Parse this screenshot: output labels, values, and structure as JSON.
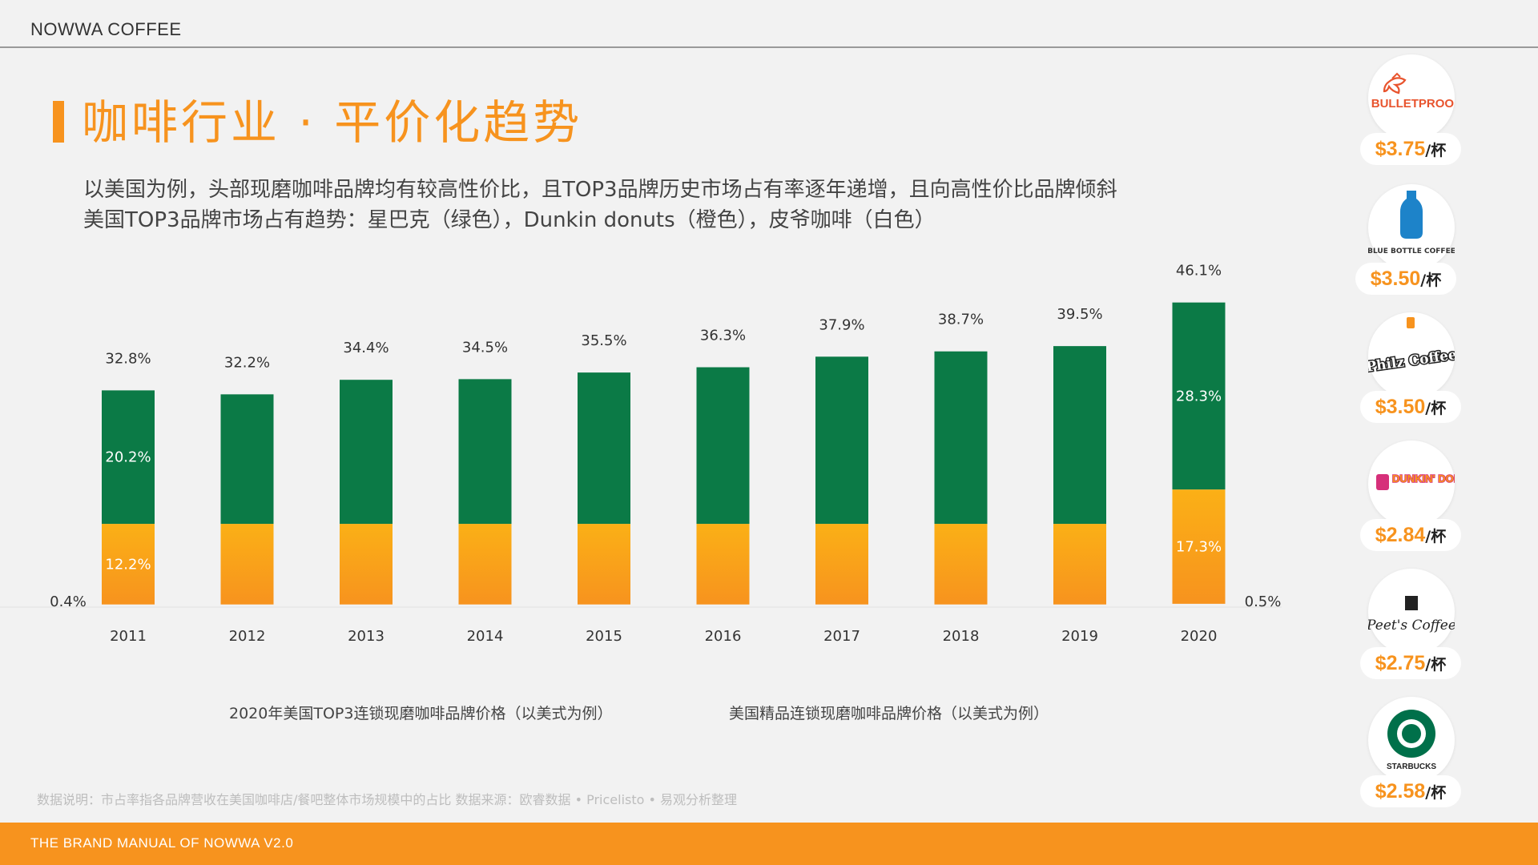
{
  "header": {
    "brand": "NOWWA COFFEE"
  },
  "title": "咖啡行业 · 平价化趋势",
  "subtitle_1": "以美国为例，头部现磨咖啡品牌均有较高性价比，且TOP3品牌历史市场占有率逐年递增，且向高性价比品牌倾斜",
  "subtitle_2": "美国TOP3品牌市场占有趋势：星巴克（绿色），Dunkin donuts（橙色），皮爷咖啡（白色）",
  "chart_data": {
    "type": "bar",
    "stacked": true,
    "categories": [
      "2011",
      "2012",
      "2013",
      "2014",
      "2015",
      "2016",
      "2017",
      "2018",
      "2019",
      "2020"
    ],
    "totals": [
      "32.8%",
      "32.2%",
      "34.4%",
      "34.5%",
      "35.5%",
      "36.3%",
      "37.9%",
      "38.7%",
      "39.5%",
      "46.1%"
    ],
    "series": [
      {
        "values": [
          0.4,
          0.4,
          0.4,
          0.4,
          0.4,
          0.4,
          0.4,
          0.4,
          0.4,
          0.5
        ],
        "color": "#f2f2f2",
        "labels": [
          "0.4%",
          "",
          "",
          "",
          "",
          "",
          "",
          "",
          "",
          "0.5%"
        ]
      },
      {
        "values": [
          12.2,
          12.2,
          12.2,
          12.2,
          12.2,
          12.2,
          12.2,
          12.2,
          12.2,
          17.3
        ],
        "color": "#f7931e",
        "labels": [
          "12.2%",
          "",
          "",
          "",
          "",
          "",
          "",
          "",
          "",
          "17.3%"
        ]
      },
      {
        "values": [
          20.2,
          19.6,
          21.8,
          21.9,
          22.9,
          23.7,
          25.3,
          26.1,
          26.9,
          28.3
        ],
        "color": "#0b7a46",
        "labels": [
          "20.2%",
          "",
          "",
          "",
          "",
          "",
          "",
          "",
          "",
          "28.3%"
        ]
      }
    ],
    "legend": "none",
    "grid": false
  },
  "captions": {
    "left": "2020年美国TOP3连锁现磨咖啡品牌价格（以美式为例）",
    "right": "美国精品连锁现磨咖啡品牌价格（以美式为例）"
  },
  "note": "数据说明：市占率指各品牌营收在美国咖啡店/餐吧整体市场规模中的占比  数据来源：欧睿数据 • Pricelisto • 易观分析整理",
  "footer": {
    "text": "THE BRAND  MANUAL  OF NOWWA V2.0"
  },
  "brands": [
    {
      "name": "BULLETPROOF",
      "price": "$3.75",
      "unit": "/杯",
      "icon": "bulletproof-logo-icon"
    },
    {
      "name": "BLUE BOTTLE COFFEE",
      "price": "$3.50",
      "unit": "/杯",
      "icon": "blue-bottle-logo-icon"
    },
    {
      "name": "Philz Coffee",
      "price": "$3.50",
      "unit": "/杯",
      "icon": "philz-logo-icon"
    },
    {
      "name": "DUNKIN' DONUTS",
      "price": "$2.84",
      "unit": "/杯",
      "icon": "dunkin-logo-icon"
    },
    {
      "name": "Peet's Coffee",
      "price": "$2.75",
      "unit": "/杯",
      "icon": "peets-logo-icon"
    },
    {
      "name": "STARBUCKS",
      "price": "$2.58",
      "unit": "/杯",
      "icon": "starbucks-logo-icon"
    }
  ],
  "colors": {
    "accent": "#f7931e",
    "starbucks_green": "#0b7a46",
    "dunkin_orange": "#f7931e",
    "background": "#f2f2f2"
  }
}
